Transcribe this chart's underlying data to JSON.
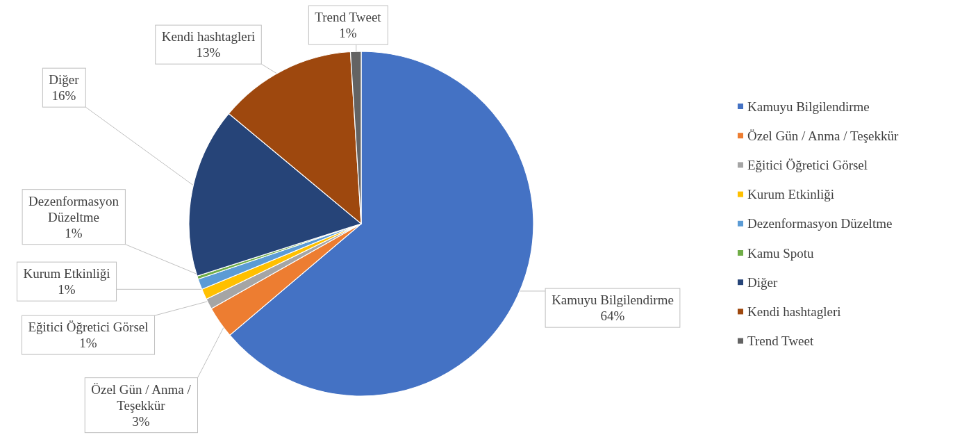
{
  "chart_data": {
    "type": "pie",
    "categories": [
      "Kamuyu Bilgilendirme",
      "Özel Gün / Anma / Teşekkür",
      "Eğitici Öğretici Görsel",
      "Kurum Etkinliği",
      "Dezenformasyon Düzeltme",
      "Kamu Spotu",
      "Diğer",
      "Kendi hashtagleri",
      "Trend Tweet"
    ],
    "values": [
      64,
      3,
      1,
      1,
      1,
      0.3,
      16,
      13,
      1
    ],
    "value_labels": [
      "64%",
      "3%",
      "1%",
      "1%",
      "1%",
      null,
      "16%",
      "13%",
      "1%"
    ],
    "colors": [
      "#4472c4",
      "#ed7d31",
      "#a5a5a5",
      "#ffc000",
      "#5b9bd5",
      "#70ad47",
      "#264478",
      "#9e480e",
      "#636363"
    ],
    "legend": "right"
  }
}
